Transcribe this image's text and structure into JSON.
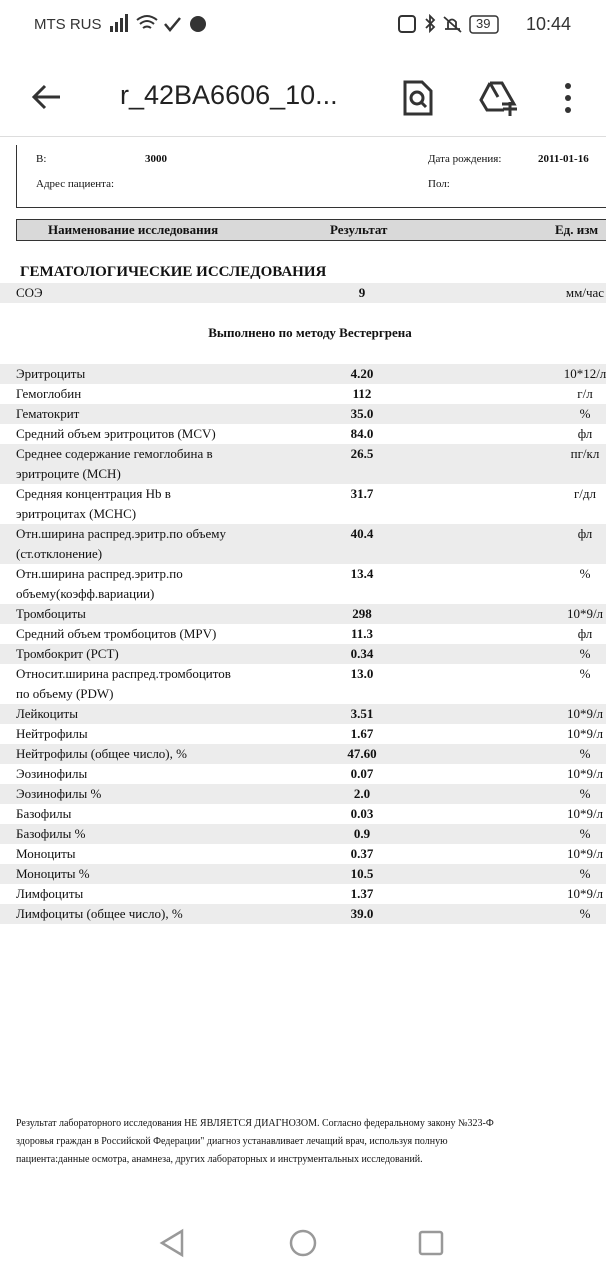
{
  "status_bar": {
    "carrier": "MTS RUS",
    "battery": "39",
    "time": "10:44"
  },
  "toolbar": {
    "title": "r_42BA6606_10..."
  },
  "document": {
    "fields": [
      {
        "label": "В:",
        "value": "3000"
      },
      {
        "label": "Дата рождения:",
        "value": "2011-01-16"
      },
      {
        "label": "Адрес пациента:"
      },
      {
        "label": "Пол:"
      }
    ],
    "table_header": [
      "Наименование исследования",
      "Результат",
      "Ед. изм"
    ],
    "section_title": "ГЕМАТОЛОГИЧЕСКИЕ ИССЛЕДОВАНИЯ",
    "esr": {
      "name": [
        "СОЭ"
      ],
      "result": "9",
      "unit": "мм/час"
    },
    "method_note": "Выполнено по методу Вестергрена",
    "rows": [
      {
        "name": [
          "Эритроциты"
        ],
        "result": "4.20",
        "unit": "10*12/л"
      },
      {
        "name": [
          "Гемоглобин"
        ],
        "result": "112",
        "unit": "г/л"
      },
      {
        "name": [
          "Гематокрит"
        ],
        "result": "35.0",
        "unit": "%"
      },
      {
        "name": [
          "Средний объем эритроцитов (MCV)"
        ],
        "result": "84.0",
        "unit": "фл"
      },
      {
        "name": [
          "Среднее содержание гемоглобина в",
          "эритроците (MCH)"
        ],
        "result": "26.5",
        "unit": "пг/кл"
      },
      {
        "name": [
          "Средняя концентрация Hb в",
          "эритроцитах (MCHC)"
        ],
        "result": "31.7",
        "unit": "г/дл"
      },
      {
        "name": [
          "Отн.ширина распред.эритр.по объему",
          "(ст.отклонение)"
        ],
        "result": "40.4",
        "unit": "фл"
      },
      {
        "name": [
          "Отн.ширина распред.эритр.по",
          "объему(коэфф.вариации)"
        ],
        "result": "13.4",
        "unit": "%"
      },
      {
        "name": [
          "Тромбоциты"
        ],
        "result": "298",
        "unit": "10*9/л"
      },
      {
        "name": [
          "Средний объем тромбоцитов (MPV)"
        ],
        "result": "11.3",
        "unit": "фл"
      },
      {
        "name": [
          "Тромбокрит (PCT)"
        ],
        "result": "0.34",
        "unit": "%"
      },
      {
        "name": [
          "Относит.ширина распред.тромбоцитов",
          "по объему (PDW)"
        ],
        "result": "13.0",
        "unit": "%"
      },
      {
        "name": [
          "Лейкоциты"
        ],
        "result": "3.51",
        "unit": "10*9/л"
      },
      {
        "name": [
          "Нейтрофилы"
        ],
        "result": "1.67",
        "unit": "10*9/л"
      },
      {
        "name": [
          "Нейтрофилы (общее число), %"
        ],
        "result": "47.60",
        "unit": "%"
      },
      {
        "name": [
          "Эозинофилы"
        ],
        "result": "0.07",
        "unit": "10*9/л"
      },
      {
        "name": [
          "Эозинофилы %"
        ],
        "result": "2.0",
        "unit": "%"
      },
      {
        "name": [
          "Базофилы"
        ],
        "result": "0.03",
        "unit": "10*9/л"
      },
      {
        "name": [
          "Базофилы %"
        ],
        "result": "0.9",
        "unit": "%"
      },
      {
        "name": [
          "Моноциты"
        ],
        "result": "0.37",
        "unit": "10*9/л"
      },
      {
        "name": [
          "Моноциты %"
        ],
        "result": "10.5",
        "unit": "%"
      },
      {
        "name": [
          "Лимфоциты"
        ],
        "result": "1.37",
        "unit": "10*9/л"
      },
      {
        "name": [
          "Лимфоциты (общее число), %"
        ],
        "result": "39.0",
        "unit": "%"
      }
    ],
    "footer": [
      "Результат лабораторного исследования НЕ ЯВЛЯЕТСЯ ДИАГНОЗОМ. Согласно федеральному закону №323-Ф",
      "здоровья граждан в Российской Федерации\" диагноз устанавливает лечащий врач, используя полную",
      "пациента:данные осмотра, анамнеза, других лабораторных и инструментальных исследований."
    ]
  }
}
